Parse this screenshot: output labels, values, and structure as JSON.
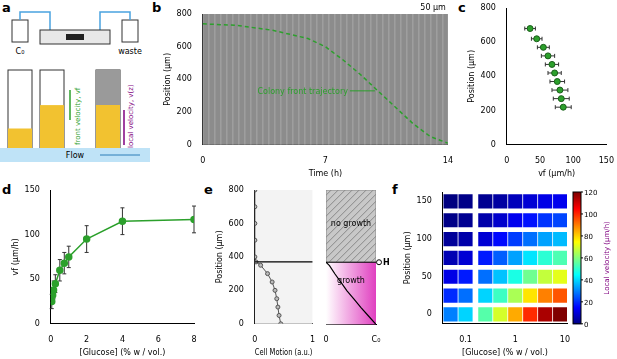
{
  "diagram": {
    "panel": "a",
    "bottle_in": "C₀",
    "bottle_out": "waste",
    "flow": "Flow",
    "front_velocity": "front velocity, vf",
    "local_velocity": "local velocity, v(z)"
  },
  "chart_data": [
    {
      "panel": "b",
      "type": "line",
      "x": [
        0,
        2,
        4,
        6,
        7,
        8,
        9,
        10,
        11,
        12,
        13,
        14
      ],
      "values": [
        740,
        730,
        700,
        650,
        600,
        520,
        430,
        330,
        230,
        130,
        50,
        10
      ],
      "color": "#2ca02c",
      "line_style": "dashed",
      "annotation": "Colony front trajectory",
      "scale_bar": "50 µm",
      "xlabel": "Time (h)",
      "ylabel": "Position (µm)",
      "xlim": [
        0,
        14
      ],
      "xticks": [
        0,
        7,
        14
      ],
      "ylim": [
        0,
        800
      ],
      "yticks": [
        0,
        200,
        400,
        600,
        800
      ]
    },
    {
      "panel": "c",
      "type": "scatter",
      "x": [
        35,
        45,
        55,
        62,
        68,
        72,
        76,
        80,
        82,
        85
      ],
      "values": [
        680,
        620,
        570,
        520,
        470,
        420,
        370,
        320,
        270,
        220
      ],
      "xerr": [
        8,
        8,
        9,
        10,
        10,
        10,
        11,
        12,
        12,
        12
      ],
      "color": "#2ca02c",
      "marker": "circle",
      "xlabel": "vf (µm/h)",
      "ylabel": "Position (µm)",
      "xlim": [
        0,
        150
      ],
      "xticks": [
        0,
        50,
        100,
        150
      ],
      "ylim": [
        0,
        800
      ],
      "yticks": [
        0,
        200,
        400,
        600,
        800
      ]
    },
    {
      "panel": "d",
      "type": "line",
      "x": [
        0.05,
        0.1,
        0.15,
        0.25,
        0.5,
        0.75,
        1,
        2,
        4,
        8
      ],
      "values": [
        25,
        32,
        38,
        45,
        60,
        68,
        75,
        95,
        115,
        117
      ],
      "errors": [
        8,
        8,
        10,
        10,
        12,
        12,
        12,
        15,
        15,
        15
      ],
      "color": "#2ca02c",
      "marker": "circle",
      "xlabel": "[Glucose] (% w / vol.)",
      "ylabel": "vf (µm/h)",
      "xlim": [
        0,
        8
      ],
      "xticks": [
        0,
        2,
        4,
        6,
        8
      ],
      "ylim": [
        0,
        150
      ],
      "yticks": [
        0,
        50,
        100,
        150
      ]
    },
    {
      "panel": "e",
      "type": "line",
      "positions": [
        0,
        50,
        100,
        150,
        200,
        250,
        300,
        350,
        370,
        400,
        500,
        600,
        700,
        800
      ],
      "values": [
        0.45,
        0.42,
        0.4,
        0.38,
        0.35,
        0.3,
        0.22,
        0.1,
        0.02,
        0,
        0,
        0,
        0,
        0
      ],
      "color": "#555555",
      "marker": "circle",
      "H": 370,
      "xlabel": "Cell Motion (a.u.)",
      "ylabel": "Position (µm)",
      "xlim": [
        0,
        1
      ],
      "xticks": [
        0,
        1
      ],
      "ylim": [
        0,
        800
      ],
      "yticks": [
        0,
        200,
        400,
        600,
        800
      ]
    },
    {
      "type": "line",
      "positions": [
        0,
        50,
        100,
        150,
        200,
        250,
        300,
        350,
        370
      ],
      "values": [
        1,
        0.85,
        0.7,
        0.56,
        0.42,
        0.3,
        0.18,
        0.07,
        0
      ],
      "color": "#000000",
      "H": 370,
      "H_label": "H",
      "annotations": [
        "no growth",
        "growth"
      ],
      "tick_labels": "x",
      "xlim": [
        0,
        1
      ],
      "xticks": [
        {
          "value": 0,
          "label": "0"
        },
        {
          "value": 1,
          "label": "C₀"
        }
      ],
      "ylim": [
        0,
        800
      ],
      "yticks": [
        0,
        200,
        400,
        600,
        800
      ]
    },
    {
      "panel": "f",
      "type": "heatmap",
      "log": "x",
      "x": [
        0.05,
        0.1,
        0.25,
        0.5,
        1,
        2,
        4,
        8
      ],
      "y": [
        0,
        25,
        50,
        75,
        100,
        125,
        150
      ],
      "cells": [
        [
          30,
          40,
          55,
          70,
          85,
          100,
          115,
          120
        ],
        [
          20,
          28,
          40,
          52,
          65,
          78,
          90,
          95
        ],
        [
          12,
          18,
          28,
          38,
          48,
          58,
          68,
          72
        ],
        [
          6,
          10,
          18,
          26,
          34,
          42,
          50,
          54
        ],
        [
          3,
          5,
          10,
          16,
          22,
          28,
          34,
          37
        ],
        [
          1,
          2,
          5,
          9,
          13,
          17,
          21,
          23
        ],
        [
          0,
          1,
          2,
          4,
          7,
          10,
          12,
          13
        ]
      ],
      "xlabel": "[Glucose] (% w / vol.)",
      "ylabel": "Position (µm)",
      "xlim": [
        0.035,
        11
      ],
      "xticks": [
        0.1,
        1,
        10
      ],
      "ylim": [
        -12.5,
        162.5
      ],
      "yticks": [
        0,
        50,
        100,
        150
      ],
      "colorbar": {
        "label": "Local velocity (µm/h)",
        "range": [
          0,
          120
        ],
        "ticks": [
          0,
          20,
          40,
          60,
          80,
          100,
          120
        ]
      }
    }
  ]
}
